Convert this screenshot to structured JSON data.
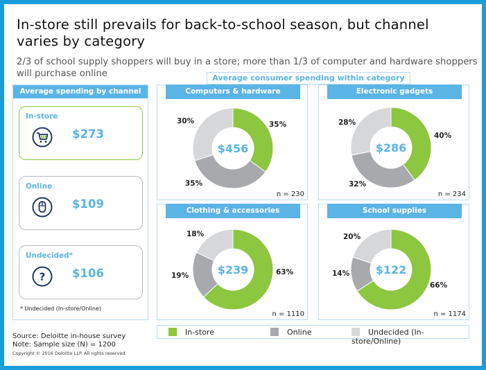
{
  "title": "In-store still prevails for back-to-school season, but channel varies by category",
  "subtitle": "2/3 of school supply shoppers will buy in a store; more than 1/3 of computer and hardware shoppers will purchase online",
  "center_header": "Average consumer spending within category",
  "colors": {
    "accent": "#5ab4e5",
    "in_store": "#8dc63f",
    "online": "#a7a9ac",
    "undecided": "#d6d7d9",
    "frame": "#1a9ddb"
  },
  "left_panel": {
    "header": "Average spending by channel",
    "channels": [
      {
        "label": "In-store",
        "value": "$273",
        "icon": "shopping-cart-icon"
      },
      {
        "label": "Online",
        "value": "$109",
        "icon": "computer-mouse-icon"
      },
      {
        "label": "Undecided*",
        "value": "$106",
        "icon": "question-icon"
      }
    ],
    "footnote": "* Undecided (In-store/Online)"
  },
  "chart_data": [
    {
      "type": "pie",
      "title": "Computers & hardware",
      "center_value": "$456",
      "n": "n = 230",
      "categories": [
        "In-store",
        "Online",
        "Undecided (In-store/Online)"
      ],
      "values": [
        35,
        35,
        30
      ],
      "labels": [
        "35%",
        "35%",
        "30%"
      ]
    },
    {
      "type": "pie",
      "title": "Electronic gadgets",
      "center_value": "$286",
      "n": "n = 234",
      "categories": [
        "In-store",
        "Online",
        "Undecided (In-store/Online)"
      ],
      "values": [
        40,
        32,
        28
      ],
      "labels": [
        "40%",
        "32%",
        "28%"
      ]
    },
    {
      "type": "pie",
      "title": "Clothing & accessories",
      "center_value": "$239",
      "n": "n = 1110",
      "categories": [
        "In-store",
        "Online",
        "Undecided (In-store/Online)"
      ],
      "values": [
        63,
        19,
        18
      ],
      "labels": [
        "63%",
        "19%",
        "18%"
      ]
    },
    {
      "type": "pie",
      "title": "School supplies",
      "center_value": "$122",
      "n": "n = 1174",
      "categories": [
        "In-store",
        "Online",
        "Undecided (In-store/Online)"
      ],
      "values": [
        66,
        14,
        20
      ],
      "labels": [
        "66%",
        "14%",
        "20%"
      ]
    }
  ],
  "legend": [
    "In-store",
    "Online",
    "Undecided (In-store/Online)"
  ],
  "source": "Source: Deloitte in-house survey",
  "note": "Note:  Sample size (N) = 1200",
  "copyright": "Copyright © 2016 Deloitte LLP. All rights reserved."
}
